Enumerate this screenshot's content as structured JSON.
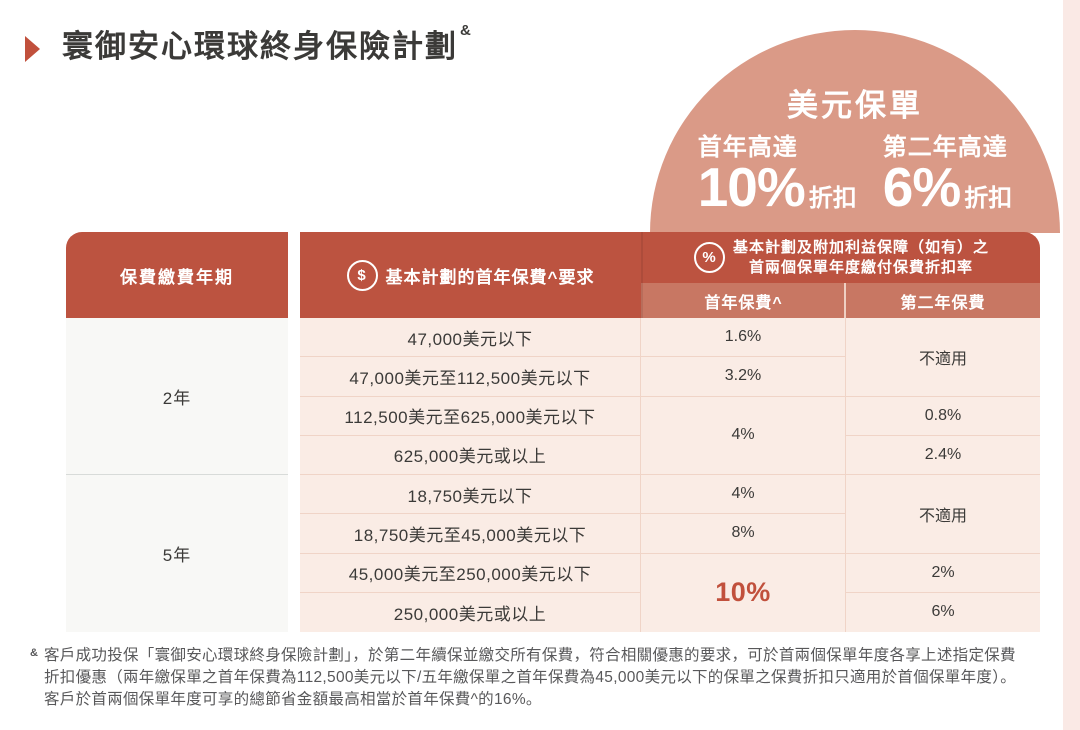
{
  "page": {
    "title": "寰御安心環球終身保險計劃",
    "title_marker": "&"
  },
  "promo": {
    "headline": "美元保單",
    "offers": [
      {
        "label": "首年高達",
        "value": "10%",
        "suffix": "折扣"
      },
      {
        "label": "第二年高達",
        "value": "6%",
        "suffix": "折扣"
      }
    ]
  },
  "table": {
    "header_term": "保費繳費年期",
    "header_premium_requirement": "基本計劃的首年保費^要求",
    "header_discount_line1": "基本計劃及附加利益保障（如有）之",
    "header_discount_line2": "首兩個保單年度繳付保費折扣率",
    "dollar_icon_glyph": "$",
    "percent_icon_glyph": "%",
    "subheader_first_year": "首年保費^",
    "subheader_second_year": "第二年保費",
    "terms": [
      "2年",
      "5年"
    ],
    "ranges": [
      "47,000美元以下",
      "47,000美元至112,500美元以下",
      "112,500美元至625,000美元以下",
      "625,000美元或以上",
      "18,750美元以下",
      "18,750美元至45,000美元以下",
      "45,000美元至250,000美元以下",
      "250,000美元或以上"
    ],
    "first_year_discounts": [
      "1.6%",
      "3.2%",
      "4%",
      "4%",
      "8%",
      "10%"
    ],
    "second_year_discounts": [
      "不適用",
      "0.8%",
      "2.4%",
      "不適用",
      "2%",
      "6%"
    ]
  },
  "footnote": {
    "marker": "&",
    "lines": [
      "客戶成功投保「寰御安心環球終身保險計劃」，於第二年續保並繳交所有保費，符合相關優惠的要求，可於首兩個保單年度各享上述指定保費",
      "折扣優惠（兩年繳保單之首年保費為112,500美元以下/五年繳保單之首年保費為45,000美元以下的保單之保費折扣只適用於首個保單年度）。",
      "客戶於首兩個保單年度可享的總節省金額最高相當於首年保費^的16%。"
    ]
  },
  "colors": {
    "brand_brick_red": "#bc5340",
    "subheader_salmon": "#c87763",
    "banner_salmon": "#da9a87",
    "row_pink": "#faece5",
    "highlight_red": "#c1503c"
  }
}
